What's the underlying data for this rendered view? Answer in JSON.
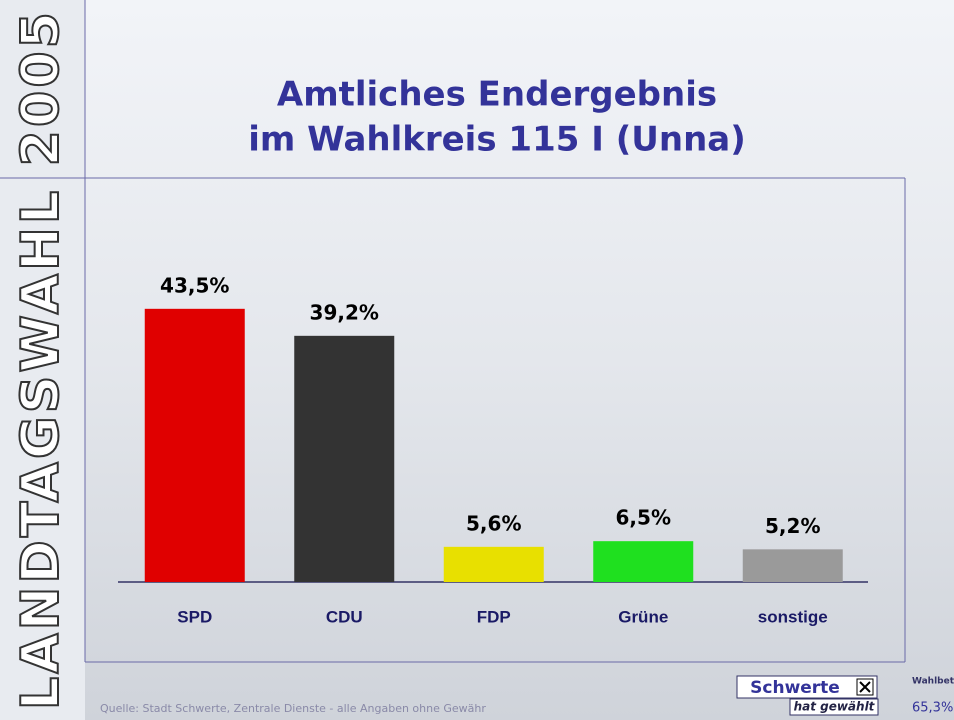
{
  "banner": "LANDTAGSWAHL 2005",
  "chart_data": {
    "type": "bar",
    "title": [
      "Amtliches Endergebnis",
      "im Wahlkreis 115 I (Unna)"
    ],
    "categories": [
      "SPD",
      "CDU",
      "FDP",
      "Grüne",
      "sonstige"
    ],
    "values": [
      43.5,
      39.2,
      5.6,
      6.5,
      5.2
    ],
    "value_labels": [
      "43,5%",
      "39,2%",
      "5,6%",
      "6,5%",
      "5,2%"
    ],
    "colors": [
      "#e00000",
      "#333333",
      "#e8e000",
      "#1fe01f",
      "#9a9a9a"
    ]
  },
  "footer": {
    "source": "Quelle: Stadt Schwerte, Zentrale Dienste - alle Angaben ohne Gewähr",
    "logo": "Schwerte",
    "logo_sub": "hat gewählt"
  },
  "turnout": {
    "label": "Wahlbet.",
    "value": "65,3%"
  }
}
